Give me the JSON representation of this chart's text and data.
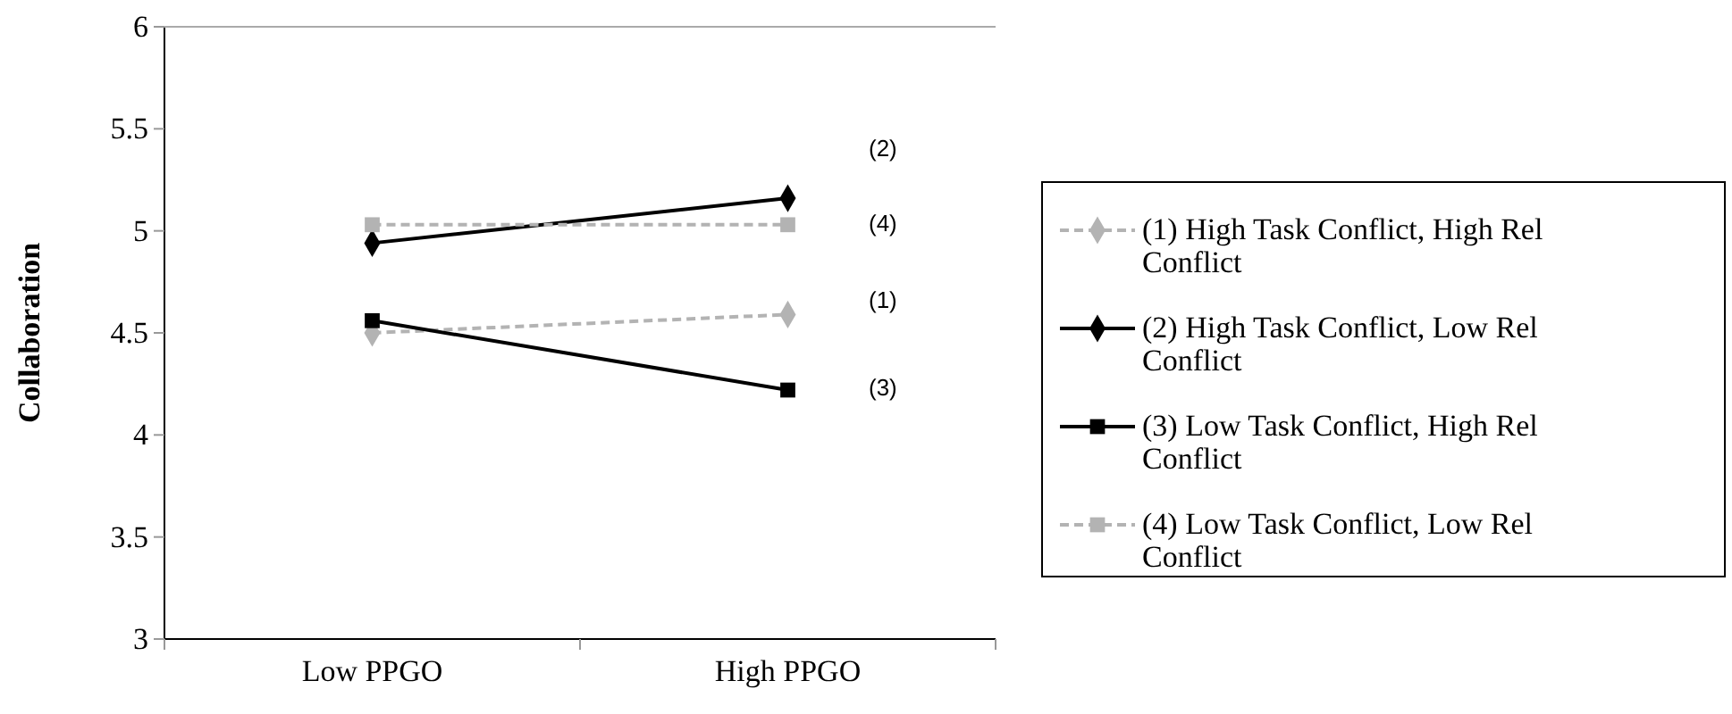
{
  "chart_data": {
    "type": "line",
    "ylabel": "Collaboration",
    "categories": [
      "Low PPGO",
      "High PPGO"
    ],
    "ylim": [
      3,
      6
    ],
    "yticks": [
      3,
      3.5,
      4,
      4.5,
      5,
      5.5,
      6
    ],
    "grid": false,
    "legend": "right",
    "series": [
      {
        "name": "(1) High Task Conflict, High Rel Conflict",
        "color": "#b3b3b3",
        "values": [
          4.5,
          4.59
        ],
        "marker": "diamond",
        "line_style": "dashed"
      },
      {
        "name": "(2) High Task Conflict, Low Rel Conflict",
        "color": "#000000",
        "values": [
          4.94,
          5.16
        ],
        "marker": "diamond",
        "line_style": "solid"
      },
      {
        "name": "(3) Low Task Conflict, High Rel Conflict",
        "color": "#000000",
        "values": [
          4.56,
          4.22
        ],
        "marker": "square",
        "line_style": "solid"
      },
      {
        "name": "(4) Low Task Conflict, Low Rel Conflict",
        "color": "#b3b3b3",
        "values": [
          5.03,
          5.03
        ],
        "marker": "square",
        "line_style": "dashed"
      }
    ],
    "annotations": [
      "(2)",
      "(4)",
      "(1)",
      "(3)"
    ]
  }
}
